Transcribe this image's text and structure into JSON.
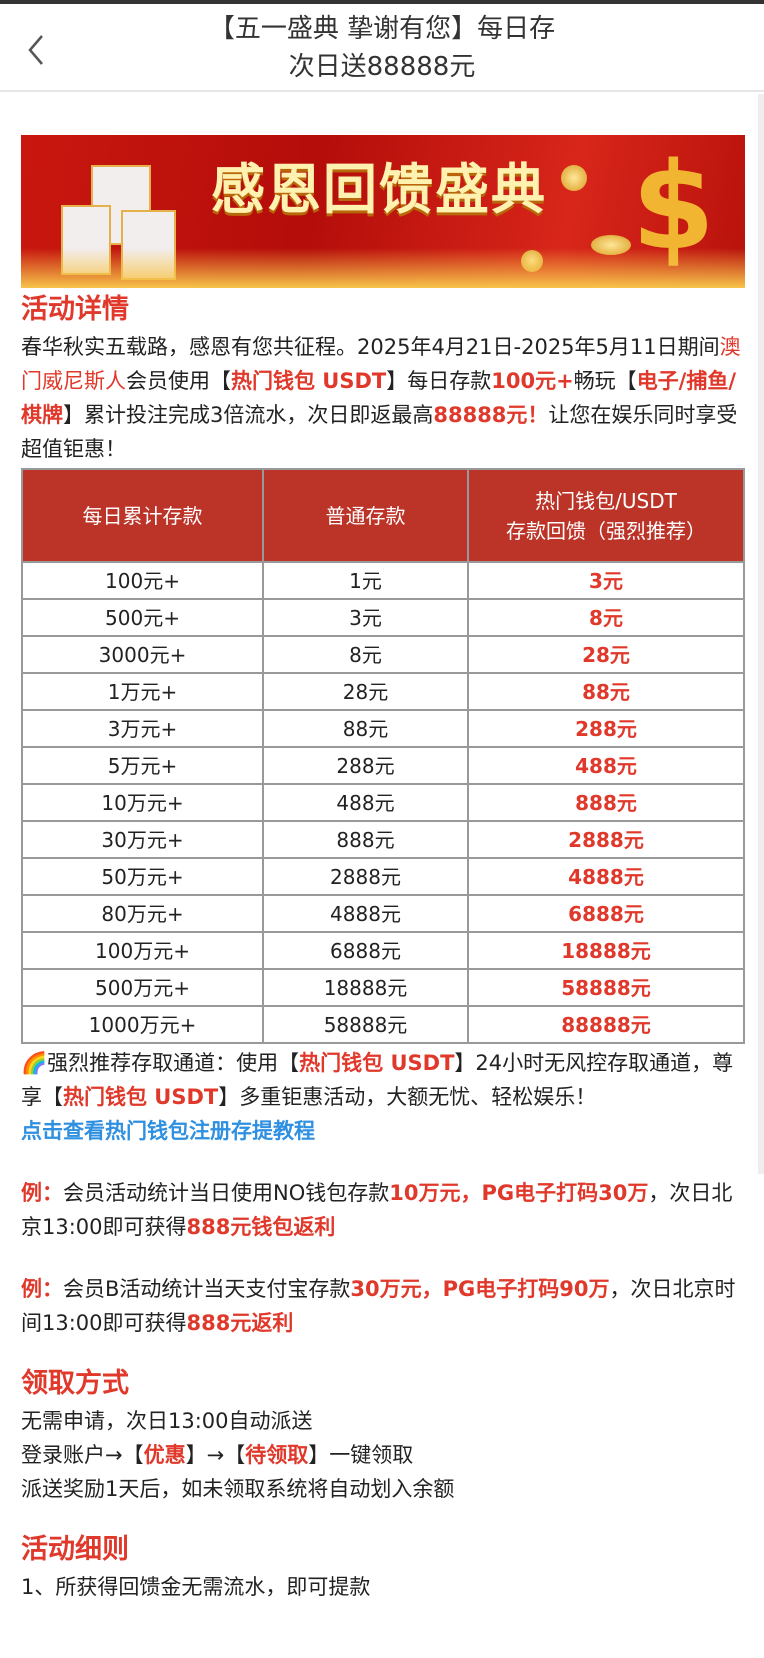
{
  "header": {
    "title_line1": "【五一盛典 挚谢有您】每日存",
    "title_line2": "次日送88888元",
    "back_icon": "chevron-left-icon"
  },
  "banner": {
    "text": "感恩回馈盛典"
  },
  "details": {
    "heading": "活动详情",
    "p": [
      "春华秋实五载路，感恩有您共征程。2025年4月21日-2025年5月11日期间",
      "澳门威尼斯人",
      "会员使用【",
      "热门钱包 USDT",
      "】每日存款",
      "100元+",
      "畅玩【",
      "电子/捕鱼/棋牌",
      "】累计投注完成3倍流水，次日即返最高",
      "88888元！",
      "让您在娱乐同时享受超值钜惠！"
    ]
  },
  "table": {
    "headers": [
      "每日累计存款",
      "普通存款",
      "热门钱包/USDT",
      "存款回馈（强烈推荐）"
    ],
    "rows": [
      [
        "100元+",
        "1元",
        "3元"
      ],
      [
        "500元+",
        "3元",
        "8元"
      ],
      [
        "3000元+",
        "8元",
        "28元"
      ],
      [
        "1万元+",
        "28元",
        "88元"
      ],
      [
        "3万元+",
        "88元",
        "288元"
      ],
      [
        "5万元+",
        "288元",
        "488元"
      ],
      [
        "10万元+",
        "488元",
        "888元"
      ],
      [
        "30万元+",
        "888元",
        "2888元"
      ],
      [
        "50万元+",
        "2888元",
        "4888元"
      ],
      [
        "80万元+",
        "4888元",
        "6888元"
      ],
      [
        "100万元+",
        "6888元",
        "18888元"
      ],
      [
        "500万元+",
        "18888元",
        "58888元"
      ],
      [
        "1000万元+",
        "58888元",
        "88888元"
      ]
    ]
  },
  "recommend": {
    "emoji": "🌈",
    "p": [
      "强烈推荐存取通道：使用【",
      "热门钱包 USDT",
      "】24小时无风控存取通道，尊享【",
      "热门钱包 USDT",
      "】多重钜惠活动，大额无忧、轻松娱乐！"
    ],
    "link": "点击查看热门钱包注册存提教程"
  },
  "example1": [
    "例：",
    "会员活动统计当日使用NO钱包存款",
    "10万元，PG电子打码30万",
    "，次日北京13:00即可获得",
    "888元钱包返利"
  ],
  "example2": [
    "例：",
    "会员B活动统计当天支付宝存款",
    "30万元，PG电子打码90万",
    "，次日北京时间13:00即可获得",
    "888元返利"
  ],
  "claim": {
    "heading": "领取方式",
    "line1": "无需申请，次日13:00自动派送",
    "line2": [
      "登录账户→【",
      "优惠",
      "】→【",
      "待领取",
      "】一键领取"
    ],
    "line3": "派送奖励1天后，如未领取系统将自动划入余额"
  },
  "rules": {
    "heading": "活动细则",
    "line1": "1、所获得回馈金无需流水，即可提款"
  },
  "colors": {
    "accent": "#e0392b",
    "table_header": "#bc3328",
    "link": "#2f8fe0"
  }
}
